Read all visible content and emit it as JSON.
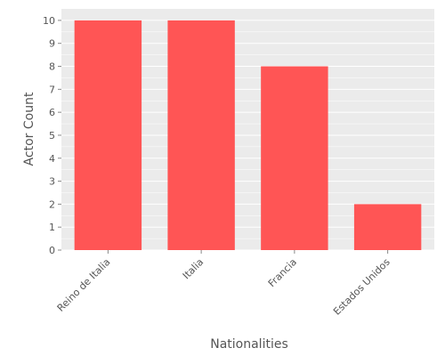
{
  "chart_data": {
    "type": "bar",
    "categories": [
      "Reino de Italia",
      "Italia",
      "Francia",
      "Estados Unidos"
    ],
    "values": [
      10,
      10,
      8,
      2
    ],
    "xlabel": "Nationalities",
    "ylabel": "Actor Count",
    "ylim": [
      0,
      10.5
    ],
    "yticks": [
      0,
      1,
      2,
      3,
      4,
      5,
      6,
      7,
      8,
      9,
      10
    ],
    "grid": true,
    "bar_color": "#ff5555",
    "plot_background": "#ebebeb",
    "grid_color": "#ffffff",
    "text_color": "#555555"
  }
}
